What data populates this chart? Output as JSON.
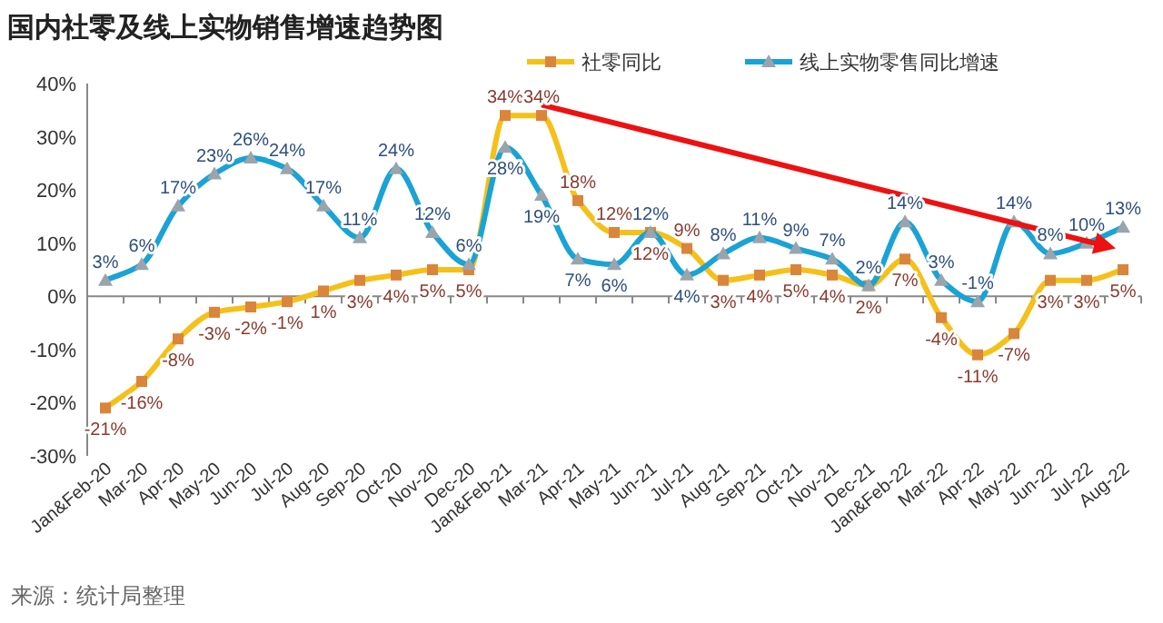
{
  "chart_data": {
    "type": "line",
    "title": "国内社零及线上实物销售增速趋势图",
    "categories": [
      "Jan&Feb-20",
      "Mar-20",
      "Apr-20",
      "May-20",
      "Jun-20",
      "Jul-20",
      "Aug-20",
      "Sep-20",
      "Oct-20",
      "Nov-20",
      "Dec-20",
      "Jan&Feb-21",
      "Mar-21",
      "Apr-21",
      "May-21",
      "Jun-21",
      "Jul-21",
      "Aug-21",
      "Sep-21",
      "Oct-21",
      "Nov-21",
      "Dec-21",
      "Jan&Feb-22",
      "Mar-22",
      "Apr-22",
      "May-22",
      "Jun-22",
      "Jul-22",
      "Aug-22"
    ],
    "series": [
      {
        "name": "社零同比",
        "color": "#f5c01a",
        "marker": "square",
        "values": [
          -21,
          -16,
          -8,
          -3,
          -2,
          -1,
          1,
          3,
          4,
          5,
          5,
          34,
          34,
          18,
          12,
          12,
          9,
          3,
          4,
          5,
          4,
          2,
          7,
          -4,
          -11,
          -7,
          3,
          3,
          5
        ],
        "value_labels": [
          "-21%",
          "-16%",
          "-8%",
          "-3%",
          "-2%",
          "-1%",
          "1%",
          "3%",
          "4%",
          "5%",
          "5%",
          "34%",
          "34%",
          "18%",
          "12%",
          "12%",
          "9%",
          "3%",
          "4%",
          "5%",
          "4%",
          "2%",
          "7%",
          "-4%",
          "-11%",
          "-7%",
          "3%",
          "3%",
          "5%"
        ]
      },
      {
        "name": "线上实物零售同比增速",
        "color": "#1aa3d4",
        "marker": "triangle",
        "values": [
          3,
          6,
          17,
          23,
          26,
          24,
          17,
          11,
          24,
          12,
          6,
          28,
          19,
          7,
          6,
          12,
          4,
          8,
          11,
          9,
          7,
          2,
          14,
          3,
          -1,
          14,
          8,
          10,
          13
        ],
        "value_labels": [
          "3%",
          "6%",
          "17%",
          "23%",
          "26%",
          "24%",
          "17%",
          "11%",
          "24%",
          "12%",
          "6%",
          "28%",
          "19%",
          "7%",
          "6%",
          "12%",
          "4%",
          "8%",
          "11%",
          "9%",
          "7%",
          "2%",
          "14%",
          "3%",
          "-1%",
          "14%",
          "8%",
          "10%",
          "13%"
        ]
      }
    ],
    "ylim": [
      -30,
      40
    ],
    "yticks": [
      {
        "value": -30,
        "label": "-30%"
      },
      {
        "value": -20,
        "label": "-20%"
      },
      {
        "value": -10,
        "label": "-10%"
      },
      {
        "value": 0,
        "label": "0%"
      },
      {
        "value": 10,
        "label": "10%"
      },
      {
        "value": 20,
        "label": "20%"
      },
      {
        "value": 30,
        "label": "30%"
      },
      {
        "value": 40,
        "label": "40%"
      }
    ],
    "legend": "top",
    "annotations": [
      "来源：统计局整理"
    ]
  }
}
